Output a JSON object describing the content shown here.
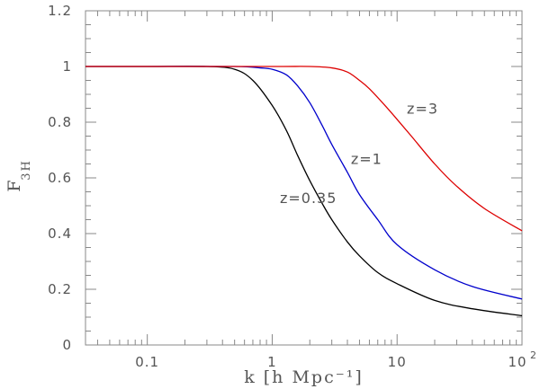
{
  "chart_data": {
    "type": "line",
    "title": "",
    "xlabel": "k [h Mpc⁻¹]",
    "ylabel": {
      "main": "F",
      "sub": "3H"
    },
    "xscale": "log",
    "xlim": [
      0.032,
      100
    ],
    "ylim": [
      0,
      1.2
    ],
    "x_ticks": [
      {
        "value": 0.1,
        "label": "0.1"
      },
      {
        "value": 1,
        "label": "1"
      },
      {
        "value": 10,
        "label": "10"
      },
      {
        "value": 100,
        "label": "10",
        "sup": "2"
      }
    ],
    "y_ticks": [
      {
        "value": 0,
        "label": "0"
      },
      {
        "value": 0.2,
        "label": "0.2"
      },
      {
        "value": 0.4,
        "label": "0.4"
      },
      {
        "value": 0.6,
        "label": "0.6"
      },
      {
        "value": 0.8,
        "label": "0.8"
      },
      {
        "value": 1.0,
        "label": "1"
      },
      {
        "value": 1.2,
        "label": "1.2"
      }
    ],
    "grid": false,
    "legend": "none",
    "series": [
      {
        "annotation": "z=0.35",
        "color": "#000000",
        "x": [
          0.032,
          0.1,
          0.3,
          0.5,
          0.7,
          1.0,
          1.3,
          1.6,
          2.0,
          2.5,
          3.0,
          4.0,
          5.0,
          7.0,
          10,
          20,
          40,
          100
        ],
        "y": [
          1.0,
          1.0,
          1.0,
          0.99,
          0.95,
          0.86,
          0.77,
          0.68,
          0.59,
          0.51,
          0.45,
          0.37,
          0.32,
          0.26,
          0.22,
          0.16,
          0.13,
          0.105
        ]
      },
      {
        "annotation": "z=1",
        "color": "#0000cc",
        "x": [
          0.032,
          0.1,
          0.5,
          0.8,
          1.0,
          1.3,
          1.6,
          2.0,
          2.5,
          3.0,
          4.0,
          5.0,
          7.0,
          10,
          20,
          40,
          100
        ],
        "y": [
          1.0,
          1.0,
          1.0,
          0.995,
          0.99,
          0.97,
          0.93,
          0.87,
          0.79,
          0.72,
          0.62,
          0.54,
          0.45,
          0.36,
          0.27,
          0.21,
          0.165
        ]
      },
      {
        "annotation": "z=3",
        "color": "#dd0000",
        "x": [
          0.032,
          0.1,
          1.0,
          2.0,
          3.0,
          4.0,
          5.0,
          6.0,
          8.0,
          10,
          13,
          20,
          30,
          50,
          100
        ],
        "y": [
          1.0,
          1.0,
          1.0,
          1.0,
          0.995,
          0.98,
          0.95,
          0.92,
          0.86,
          0.81,
          0.75,
          0.65,
          0.57,
          0.49,
          0.41
        ]
      }
    ],
    "annotations": [
      {
        "text": "z=3",
        "x": 16,
        "y": 0.83
      },
      {
        "text": "z=1",
        "x": 5.7,
        "y": 0.65
      },
      {
        "text": "z=0.35",
        "x": 1.95,
        "y": 0.51
      }
    ]
  }
}
